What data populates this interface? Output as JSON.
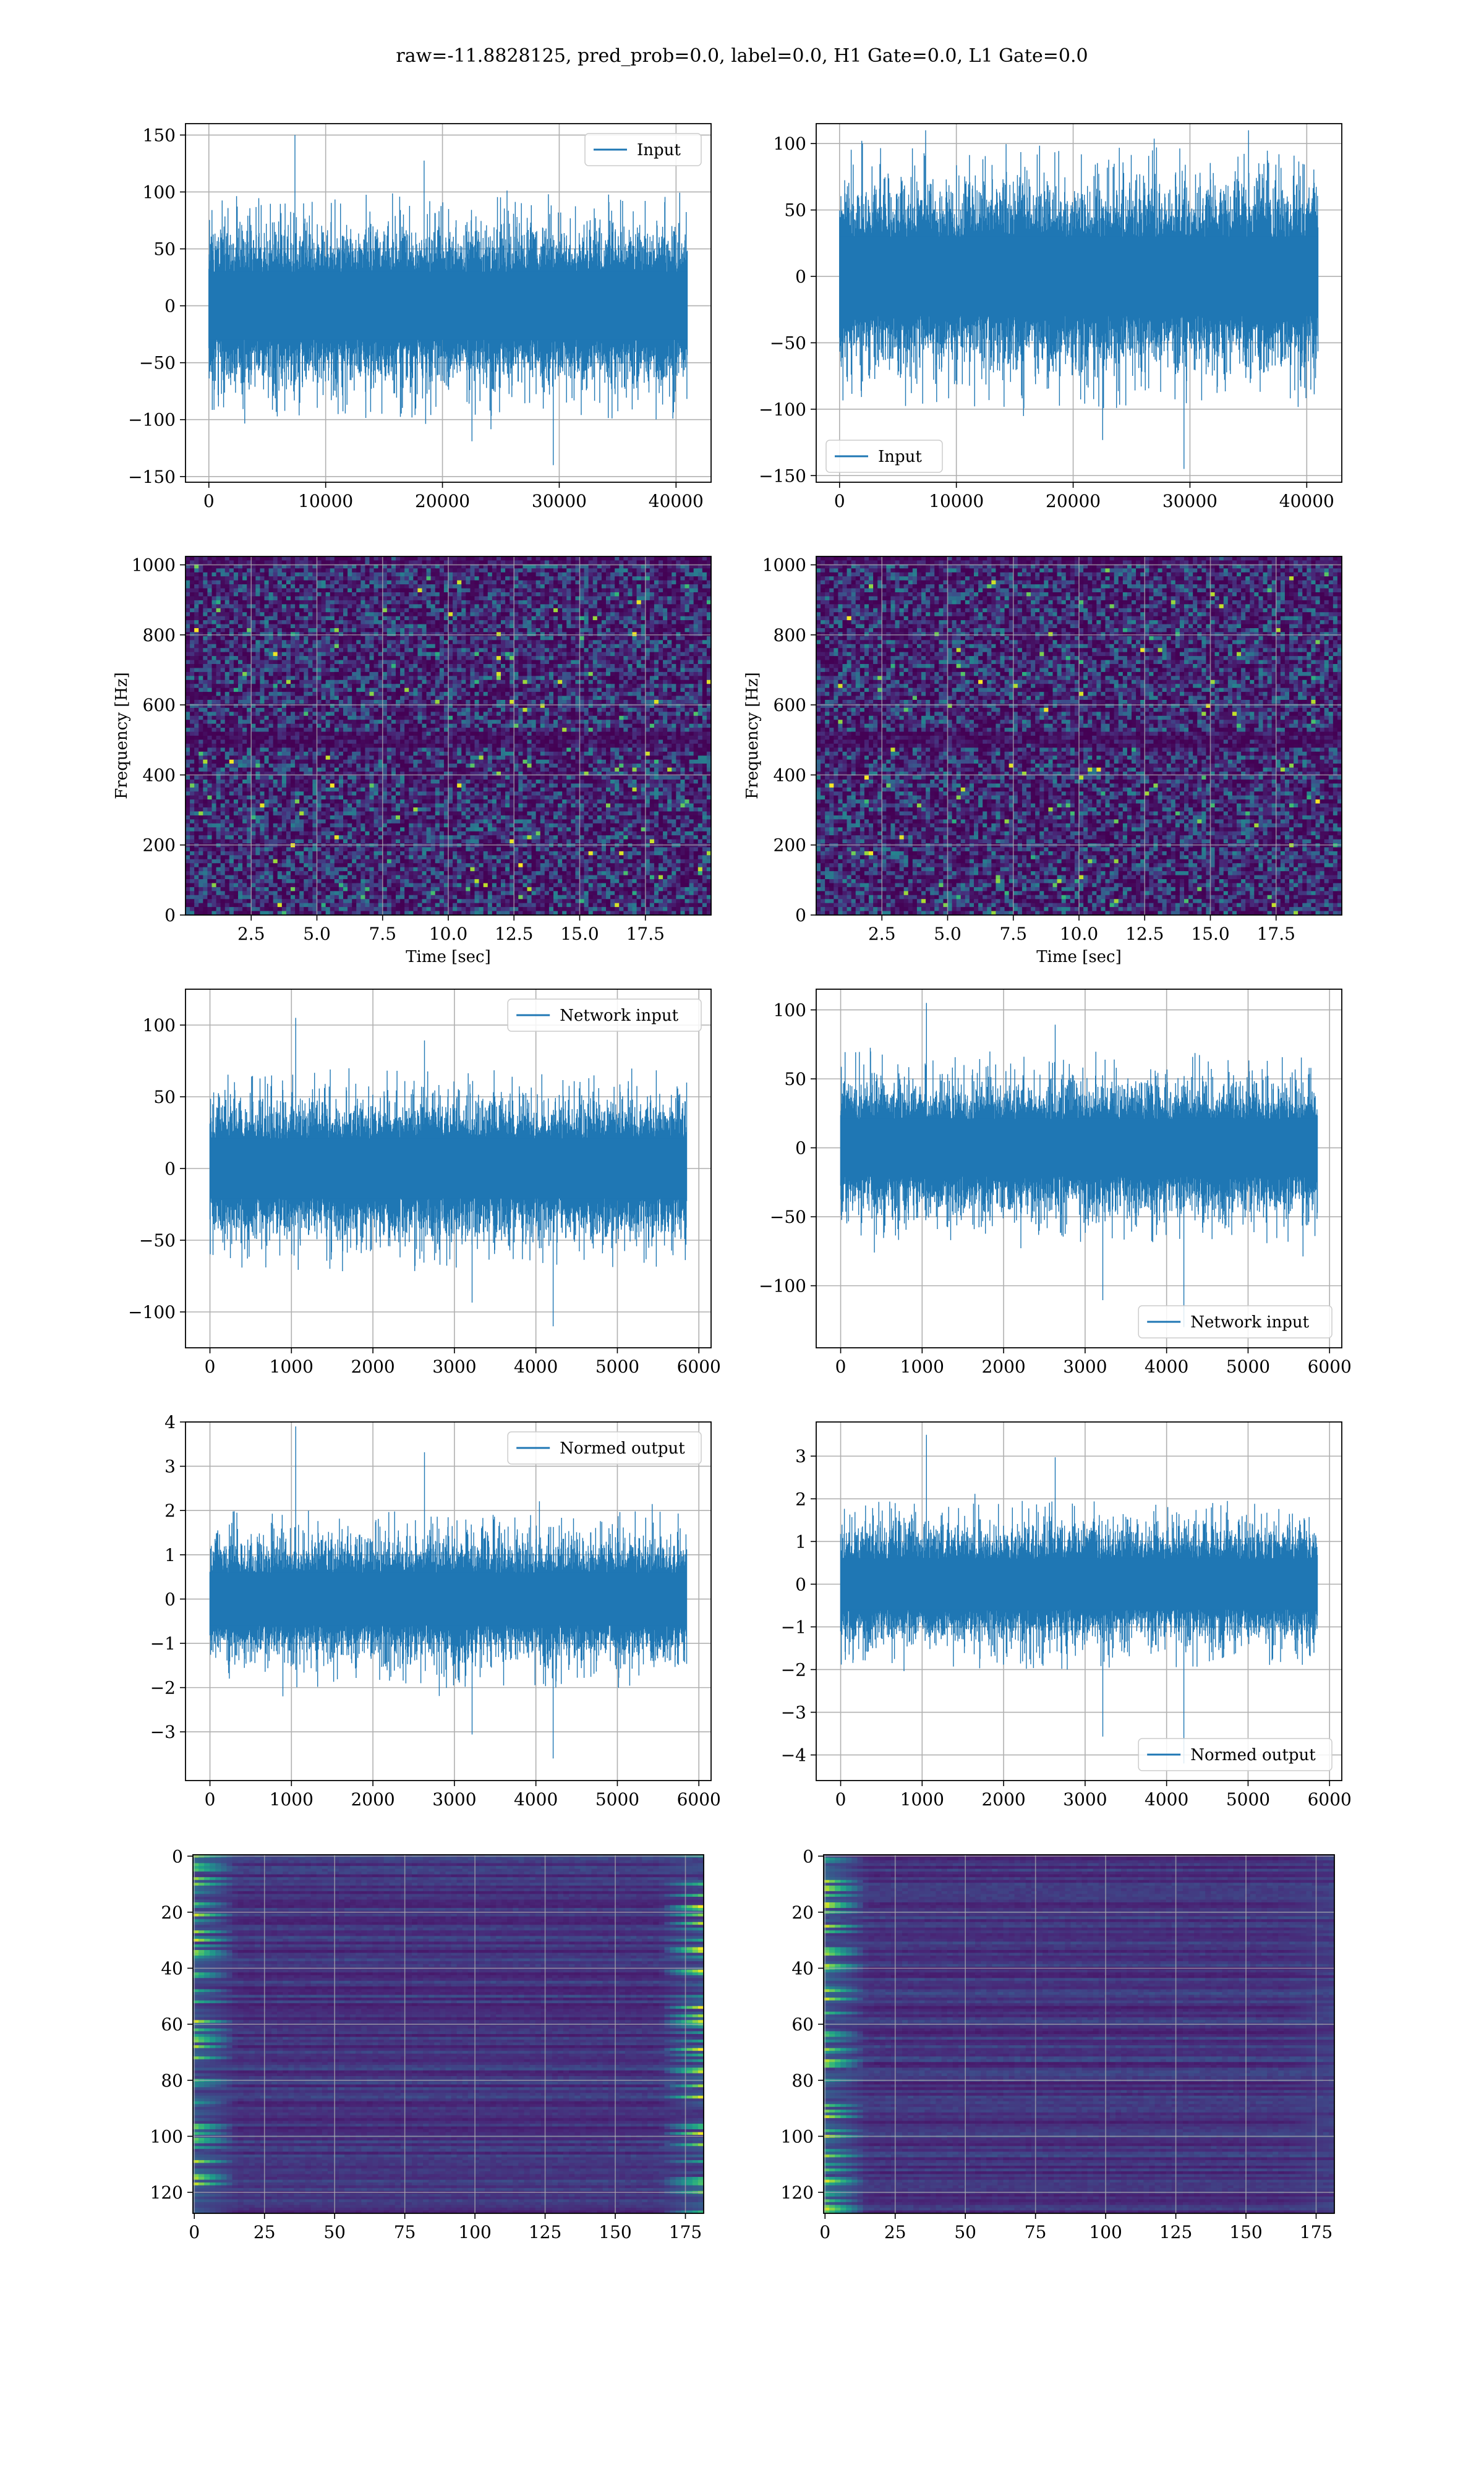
{
  "suptitle": "raw=-11.8828125, pred_prob=0.0, label=0.0, H1 Gate=0.0, L1 Gate=0.0",
  "colors": {
    "line": "#1f77b4",
    "grid": "#b0b0b0",
    "heat_low": "#440154",
    "heat_mid": "#21918c",
    "heat_high": "#fde725"
  },
  "chart_data": [
    {
      "type": "line",
      "id": "raw-left",
      "title": "",
      "xlabel": "",
      "ylabel": "",
      "xlim": [
        -2000,
        43000
      ],
      "ylim": [
        -155,
        160
      ],
      "xticks": [
        0,
        10000,
        20000,
        30000,
        40000
      ],
      "yticks": [
        -150,
        -100,
        -50,
        0,
        50,
        100,
        150
      ],
      "x_range": [
        0,
        40960
      ],
      "envelope": 50,
      "peak_max": 150,
      "peak_min": -140,
      "grid": true,
      "legend": {
        "label": "Input",
        "placement": "upper right"
      },
      "series": [
        {
          "name": "Input"
        }
      ]
    },
    {
      "type": "line",
      "id": "raw-right",
      "title": "",
      "xlabel": "",
      "ylabel": "",
      "xlim": [
        -2000,
        43000
      ],
      "ylim": [
        -155,
        115
      ],
      "xticks": [
        0,
        10000,
        20000,
        30000,
        40000
      ],
      "yticks": [
        -150,
        -100,
        -50,
        0,
        50,
        100
      ],
      "x_range": [
        0,
        40960
      ],
      "envelope": 50,
      "peak_max": 110,
      "peak_min": -145,
      "grid": true,
      "legend": {
        "label": "Input",
        "placement": "lower left"
      },
      "series": [
        {
          "name": "Input"
        }
      ]
    },
    {
      "type": "heatmap",
      "id": "spec-left",
      "title": "",
      "xlabel": "Time [sec]",
      "ylabel": "Frequency [Hz]",
      "xlim": [
        0,
        20
      ],
      "ylim": [
        0,
        1024
      ],
      "xticks": [
        2.5,
        5.0,
        7.5,
        10.0,
        12.5,
        15.0,
        17.5
      ],
      "yticks": [
        0,
        200,
        400,
        600,
        800,
        1000
      ],
      "grid": true,
      "band_rows": [
        500
      ]
    },
    {
      "type": "heatmap",
      "id": "spec-right",
      "title": "",
      "xlabel": "Time [sec]",
      "ylabel": "Frequency [Hz]",
      "xlim": [
        0,
        20
      ],
      "ylim": [
        0,
        1024
      ],
      "xticks": [
        2.5,
        5.0,
        7.5,
        10.0,
        12.5,
        15.0,
        17.5
      ],
      "yticks": [
        0,
        200,
        400,
        600,
        800,
        1000
      ],
      "grid": true,
      "band_rows": [
        500
      ]
    },
    {
      "type": "line",
      "id": "net-left",
      "title": "",
      "xlabel": "",
      "ylabel": "",
      "xlim": [
        -300,
        6150
      ],
      "ylim": [
        -125,
        125
      ],
      "xticks": [
        0,
        1000,
        2000,
        3000,
        4000,
        5000,
        6000
      ],
      "yticks": [
        -100,
        -50,
        0,
        50,
        100
      ],
      "x_range": [
        0,
        5850
      ],
      "envelope": 35,
      "peak_max": 105,
      "peak_min": -110,
      "grid": true,
      "legend": {
        "label": "Network input",
        "placement": "upper right"
      },
      "series": [
        {
          "name": "Network input"
        }
      ]
    },
    {
      "type": "line",
      "id": "net-right",
      "title": "",
      "xlabel": "",
      "ylabel": "",
      "xlim": [
        -300,
        6150
      ],
      "ylim": [
        -145,
        115
      ],
      "xticks": [
        0,
        1000,
        2000,
        3000,
        4000,
        5000,
        6000
      ],
      "yticks": [
        -100,
        -50,
        0,
        50,
        100
      ],
      "x_range": [
        0,
        5850
      ],
      "envelope": 35,
      "peak_max": 105,
      "peak_min": -130,
      "grid": true,
      "legend": {
        "label": "Network input",
        "placement": "lower right"
      },
      "series": [
        {
          "name": "Network input"
        }
      ]
    },
    {
      "type": "line",
      "id": "norm-left",
      "title": "",
      "xlabel": "",
      "ylabel": "",
      "xlim": [
        -300,
        6150
      ],
      "ylim": [
        -4.1,
        4.0
      ],
      "xticks": [
        0,
        1000,
        2000,
        3000,
        4000,
        5000,
        6000
      ],
      "yticks": [
        -3,
        -2,
        -1,
        0,
        1,
        2,
        3,
        4
      ],
      "x_range": [
        0,
        5850
      ],
      "envelope": 1.0,
      "peak_max": 3.9,
      "peak_min": -3.6,
      "grid": true,
      "legend": {
        "label": "Normed output",
        "placement": "upper right"
      },
      "series": [
        {
          "name": "Normed output"
        }
      ]
    },
    {
      "type": "line",
      "id": "norm-right",
      "title": "",
      "xlabel": "",
      "ylabel": "",
      "xlim": [
        -300,
        6150
      ],
      "ylim": [
        -4.6,
        3.8
      ],
      "xticks": [
        0,
        1000,
        2000,
        3000,
        4000,
        5000,
        6000
      ],
      "yticks": [
        -4,
        -3,
        -2,
        -1,
        0,
        1,
        2,
        3
      ],
      "x_range": [
        0,
        5850
      ],
      "envelope": 1.0,
      "peak_max": 3.5,
      "peak_min": -4.2,
      "grid": true,
      "legend": {
        "label": "Normed output",
        "placement": "lower right"
      },
      "series": [
        {
          "name": "Normed output"
        }
      ]
    },
    {
      "type": "heatmap",
      "id": "feat-left",
      "title": "",
      "xlabel": "",
      "ylabel": "",
      "xlim": [
        -0.5,
        181.5
      ],
      "ylim": [
        127.5,
        -0.5
      ],
      "xticks": [
        0,
        25,
        50,
        75,
        100,
        125,
        150,
        175
      ],
      "yticks": [
        0,
        20,
        40,
        60,
        80,
        100,
        120
      ],
      "rows": 128,
      "cols": 182,
      "grid": true,
      "bright_edges": [
        "left",
        "right"
      ]
    },
    {
      "type": "heatmap",
      "id": "feat-right",
      "title": "",
      "xlabel": "",
      "ylabel": "",
      "xlim": [
        -0.5,
        181.5
      ],
      "ylim": [
        127.5,
        -0.5
      ],
      "xticks": [
        0,
        25,
        50,
        75,
        100,
        125,
        150,
        175
      ],
      "yticks": [
        0,
        20,
        40,
        60,
        80,
        100,
        120
      ],
      "rows": 128,
      "cols": 182,
      "grid": true,
      "bright_edges": [
        "left"
      ]
    }
  ]
}
